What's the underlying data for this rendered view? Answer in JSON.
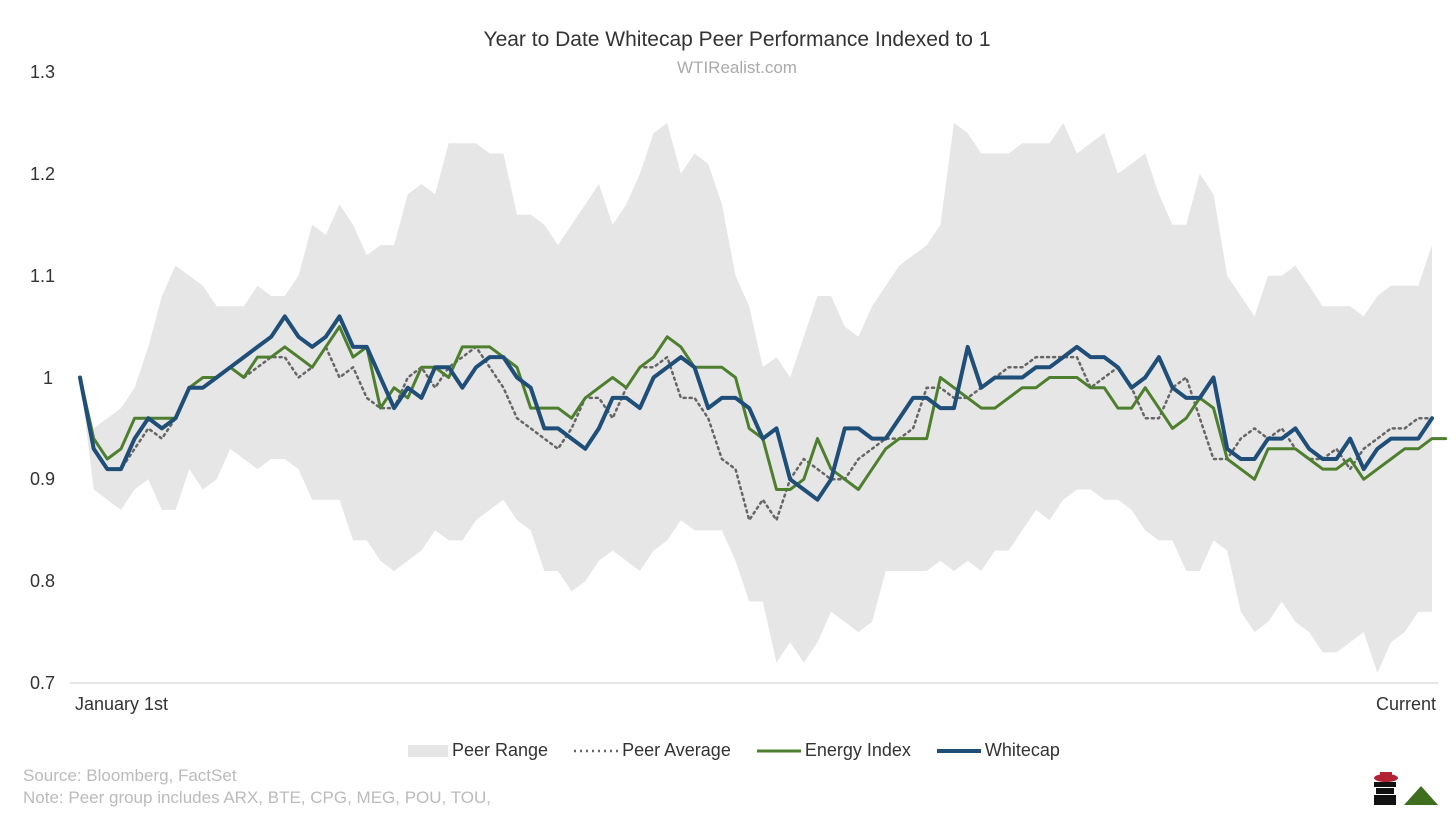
{
  "chart_data": {
    "type": "line",
    "title": "Year to Date Whitecap Peer Performance Indexed to 1",
    "subtitle": "WTIRealist.com",
    "x_labels": [
      "January 1st",
      "Current"
    ],
    "ylim": [
      0.7,
      1.3
    ],
    "yticks": [
      "1.3",
      "1.2",
      "1.1",
      "1",
      "0.9",
      "0.8",
      "0.7"
    ],
    "points": 100,
    "colors": {
      "peer_range": "#e6e6e6",
      "peer_average": "#666666",
      "energy_index": "#4e7f2e",
      "whitecap": "#1f4e79"
    },
    "series": [
      {
        "name": "Peer Range Upper",
        "values": [
          1.0,
          0.95,
          0.96,
          0.97,
          0.99,
          1.03,
          1.08,
          1.11,
          1.1,
          1.09,
          1.07,
          1.07,
          1.07,
          1.09,
          1.08,
          1.08,
          1.1,
          1.15,
          1.14,
          1.17,
          1.15,
          1.12,
          1.13,
          1.13,
          1.18,
          1.19,
          1.18,
          1.23,
          1.23,
          1.23,
          1.22,
          1.22,
          1.16,
          1.16,
          1.15,
          1.13,
          1.15,
          1.17,
          1.19,
          1.15,
          1.17,
          1.2,
          1.24,
          1.25,
          1.2,
          1.22,
          1.21,
          1.17,
          1.1,
          1.07,
          1.01,
          1.02,
          1.0,
          1.04,
          1.08,
          1.08,
          1.05,
          1.04,
          1.07,
          1.09,
          1.11,
          1.12,
          1.13,
          1.15,
          1.25,
          1.24,
          1.22,
          1.22,
          1.22,
          1.23,
          1.23,
          1.23,
          1.25,
          1.22,
          1.23,
          1.24,
          1.2,
          1.21,
          1.22,
          1.18,
          1.15,
          1.15,
          1.2,
          1.18,
          1.1,
          1.08,
          1.06,
          1.1,
          1.1,
          1.11,
          1.09,
          1.07,
          1.07,
          1.07,
          1.06,
          1.08,
          1.09,
          1.09,
          1.09,
          1.13
        ]
      },
      {
        "name": "Peer Range Lower",
        "values": [
          1.0,
          0.89,
          0.88,
          0.87,
          0.89,
          0.9,
          0.87,
          0.87,
          0.91,
          0.89,
          0.9,
          0.93,
          0.92,
          0.91,
          0.92,
          0.92,
          0.91,
          0.88,
          0.88,
          0.88,
          0.84,
          0.84,
          0.82,
          0.81,
          0.82,
          0.83,
          0.85,
          0.84,
          0.84,
          0.86,
          0.87,
          0.88,
          0.86,
          0.85,
          0.81,
          0.81,
          0.79,
          0.8,
          0.82,
          0.83,
          0.82,
          0.81,
          0.83,
          0.84,
          0.86,
          0.85,
          0.85,
          0.85,
          0.82,
          0.78,
          0.78,
          0.72,
          0.74,
          0.72,
          0.74,
          0.77,
          0.76,
          0.75,
          0.76,
          0.81,
          0.81,
          0.81,
          0.81,
          0.82,
          0.81,
          0.82,
          0.81,
          0.83,
          0.83,
          0.85,
          0.87,
          0.86,
          0.88,
          0.89,
          0.89,
          0.88,
          0.88,
          0.87,
          0.85,
          0.84,
          0.84,
          0.81,
          0.81,
          0.84,
          0.83,
          0.77,
          0.75,
          0.76,
          0.78,
          0.76,
          0.75,
          0.73,
          0.73,
          0.74,
          0.75,
          0.71,
          0.74,
          0.75,
          0.77,
          0.77
        ]
      },
      {
        "name": "Peer Average",
        "values": [
          1.0,
          0.93,
          0.91,
          0.91,
          0.93,
          0.95,
          0.94,
          0.96,
          0.99,
          0.99,
          1.0,
          1.01,
          1.0,
          1.01,
          1.02,
          1.02,
          1.0,
          1.01,
          1.03,
          1.0,
          1.01,
          0.98,
          0.97,
          0.97,
          1.0,
          1.01,
          0.99,
          1.01,
          1.02,
          1.03,
          1.01,
          0.99,
          0.96,
          0.95,
          0.94,
          0.93,
          0.95,
          0.98,
          0.98,
          0.96,
          0.99,
          1.01,
          1.01,
          1.02,
          0.98,
          0.98,
          0.96,
          0.92,
          0.91,
          0.86,
          0.88,
          0.86,
          0.9,
          0.92,
          0.91,
          0.9,
          0.9,
          0.92,
          0.93,
          0.94,
          0.94,
          0.95,
          0.99,
          0.99,
          0.98,
          0.98,
          0.99,
          1.0,
          1.01,
          1.01,
          1.02,
          1.02,
          1.02,
          1.02,
          0.99,
          1.0,
          1.01,
          0.99,
          0.96,
          0.96,
          0.99,
          1.0,
          0.96,
          0.92,
          0.92,
          0.94,
          0.95,
          0.94,
          0.95,
          0.93,
          0.92,
          0.92,
          0.93,
          0.91,
          0.93,
          0.94,
          0.95,
          0.95,
          0.96,
          0.96
        ]
      },
      {
        "name": "Energy Index",
        "values": [
          1.0,
          0.94,
          0.92,
          0.93,
          0.96,
          0.96,
          0.96,
          0.96,
          0.99,
          1.0,
          1.0,
          1.01,
          1.0,
          1.02,
          1.02,
          1.03,
          1.02,
          1.01,
          1.03,
          1.05,
          1.02,
          1.03,
          0.97,
          0.99,
          0.98,
          1.01,
          1.01,
          1.0,
          1.03,
          1.03,
          1.03,
          1.02,
          1.01,
          0.97,
          0.97,
          0.97,
          0.96,
          0.98,
          0.99,
          1.0,
          0.99,
          1.01,
          1.02,
          1.04,
          1.03,
          1.01,
          1.01,
          1.01,
          1.0,
          0.95,
          0.94,
          0.89,
          0.89,
          0.9,
          0.94,
          0.91,
          0.9,
          0.89,
          0.91,
          0.93,
          0.94,
          0.94,
          0.94,
          1.0,
          0.99,
          0.98,
          0.97,
          0.97,
          0.98,
          0.99,
          0.99,
          1.0,
          1.0,
          1.0,
          0.99,
          0.99,
          0.97,
          0.97,
          0.99,
          0.97,
          0.95,
          0.96,
          0.98,
          0.97,
          0.92,
          0.91,
          0.9,
          0.93,
          0.93,
          0.93,
          0.92,
          0.91,
          0.91,
          0.92,
          0.9,
          0.91,
          0.92,
          0.93,
          0.93,
          0.94,
          0.94
        ]
      },
      {
        "name": "Whitecap",
        "values": [
          1.0,
          0.93,
          0.91,
          0.91,
          0.94,
          0.96,
          0.95,
          0.96,
          0.99,
          0.99,
          1.0,
          1.01,
          1.02,
          1.03,
          1.04,
          1.06,
          1.04,
          1.03,
          1.04,
          1.06,
          1.03,
          1.03,
          1.0,
          0.97,
          0.99,
          0.98,
          1.01,
          1.01,
          0.99,
          1.01,
          1.02,
          1.02,
          1.0,
          0.99,
          0.95,
          0.95,
          0.94,
          0.93,
          0.95,
          0.98,
          0.98,
          0.97,
          1.0,
          1.01,
          1.02,
          1.01,
          0.97,
          0.98,
          0.98,
          0.97,
          0.94,
          0.95,
          0.9,
          0.89,
          0.88,
          0.9,
          0.95,
          0.95,
          0.94,
          0.94,
          0.96,
          0.98,
          0.98,
          0.97,
          0.97,
          1.03,
          0.99,
          1.0,
          1.0,
          1.0,
          1.01,
          1.01,
          1.02,
          1.03,
          1.02,
          1.02,
          1.01,
          0.99,
          1.0,
          1.02,
          0.99,
          0.98,
          0.98,
          1.0,
          0.93,
          0.92,
          0.92,
          0.94,
          0.94,
          0.95,
          0.93,
          0.92,
          0.92,
          0.94,
          0.91,
          0.93,
          0.94,
          0.94,
          0.94,
          0.96
        ]
      }
    ]
  },
  "legend": {
    "peer_range": "Peer Range",
    "peer_average": "Peer Average",
    "energy_index": "Energy Index",
    "whitecap": "Whitecap"
  },
  "footer": {
    "source": "Source: Bloomberg, FactSet",
    "note": "Note: Peer group includes ARX, BTE, CPG, MEG, POU, TOU,"
  }
}
